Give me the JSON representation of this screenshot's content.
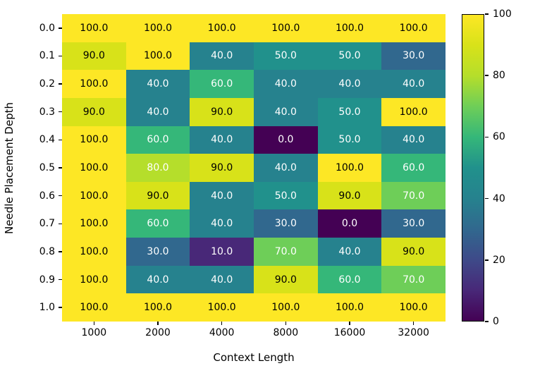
{
  "chart_data": {
    "type": "heatmap",
    "title": "",
    "xlabel": "Context Length",
    "ylabel": "Needle Placement Depth",
    "x_categories": [
      "1000",
      "2000",
      "4000",
      "8000",
      "16000",
      "32000"
    ],
    "y_categories": [
      "0.0",
      "0.1",
      "0.2",
      "0.3",
      "0.4",
      "0.5",
      "0.6",
      "0.7",
      "0.8",
      "0.9",
      "1.0"
    ],
    "values": [
      [
        100.0,
        100.0,
        100.0,
        100.0,
        100.0,
        100.0
      ],
      [
        90.0,
        100.0,
        40.0,
        50.0,
        50.0,
        30.0
      ],
      [
        100.0,
        40.0,
        60.0,
        40.0,
        40.0,
        40.0
      ],
      [
        90.0,
        40.0,
        90.0,
        40.0,
        50.0,
        100.0
      ],
      [
        100.0,
        60.0,
        40.0,
        0.0,
        50.0,
        40.0
      ],
      [
        100.0,
        80.0,
        90.0,
        40.0,
        100.0,
        60.0
      ],
      [
        100.0,
        90.0,
        40.0,
        50.0,
        90.0,
        70.0
      ],
      [
        100.0,
        60.0,
        40.0,
        30.0,
        0.0,
        30.0
      ],
      [
        100.0,
        30.0,
        10.0,
        70.0,
        40.0,
        90.0
      ],
      [
        100.0,
        40.0,
        40.0,
        90.0,
        60.0,
        70.0
      ],
      [
        100.0,
        100.0,
        100.0,
        100.0,
        100.0,
        100.0
      ]
    ],
    "vmin": 0,
    "vmax": 100,
    "colorbar_ticks": [
      0,
      20,
      40,
      60,
      80,
      100
    ],
    "colormap": "viridis",
    "colormap_stops": [
      "#440154",
      "#482878",
      "#3e4a89",
      "#31688e",
      "#26828e",
      "#21918c",
      "#35b779",
      "#6ece58",
      "#b5de2b",
      "#d8e219",
      "#fde725"
    ],
    "annotation_dark_text": "#000000",
    "annotation_light_text": "#ffffff",
    "grid": false,
    "legend_position": "colorbar-right"
  }
}
